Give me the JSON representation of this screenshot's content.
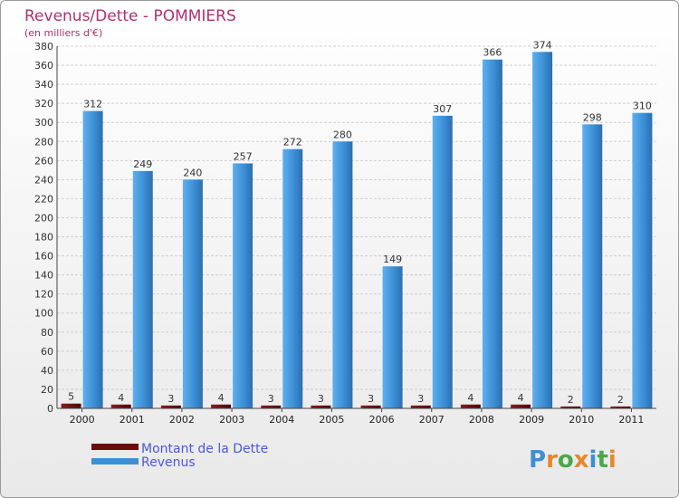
{
  "chart_data": {
    "type": "bar",
    "title": "Revenus/Dette - POMMIERS",
    "subtitle": "(en milliers d'€)",
    "categories": [
      "2000",
      "2001",
      "2002",
      "2003",
      "2004",
      "2005",
      "2006",
      "2007",
      "2008",
      "2009",
      "2010",
      "2011"
    ],
    "series": [
      {
        "name": "Montant de la Dette",
        "color": "#6b0d0d",
        "values": [
          5,
          4,
          3,
          4,
          3,
          3,
          3,
          3,
          4,
          4,
          2,
          2
        ]
      },
      {
        "name": "Revenus",
        "color": "#3d8fd6",
        "values": [
          312,
          249,
          240,
          257,
          272,
          280,
          149,
          307,
          366,
          374,
          298,
          310
        ]
      }
    ],
    "ylim": [
      0,
      380
    ],
    "ytick_step": 20,
    "grid": true,
    "legend_position": "bottom-left"
  },
  "logo": {
    "text": "Proxiti",
    "letters": [
      "P",
      "r",
      "o",
      "x",
      "i",
      "t",
      "i"
    ],
    "colors": [
      "#3d8fd6",
      "#e8872a",
      "#4aa84a",
      "#e8872a",
      "#3d8fd6",
      "#4aa84a",
      "#e8872a"
    ]
  }
}
